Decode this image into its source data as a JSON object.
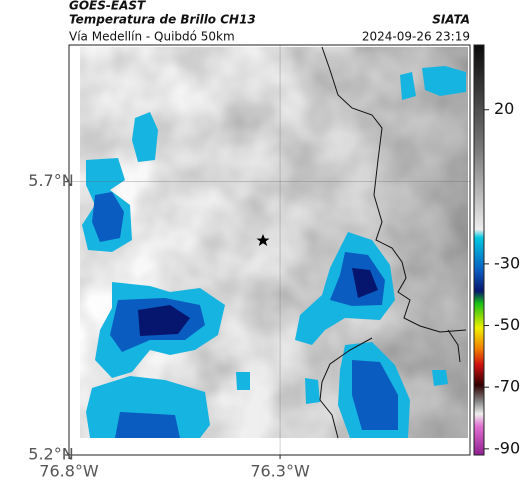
{
  "header": {
    "source": "GOES-EAST",
    "title": "Temperatura de Brillo CH13",
    "subtitle": "Vía Medellín - Quibdó 50km",
    "brand": "SIATA",
    "datetime": "2024-09-26 23:19"
  },
  "map": {
    "xlim": [
      -76.8,
      -75.85
    ],
    "ylim": [
      5.2,
      5.95
    ],
    "xticks": [
      {
        "value": -76.8,
        "label": "76.8°W"
      },
      {
        "value": -76.3,
        "label": "76.3°W"
      }
    ],
    "yticks": [
      {
        "value": 5.7,
        "label": "5.7°N"
      },
      {
        "value": 5.2,
        "label": "5.2°N"
      }
    ],
    "grid": true
  },
  "colorbar": {
    "lim": [
      -92,
      41
    ],
    "ticks": [
      20,
      -30,
      -50,
      -70,
      -90
    ]
  }
}
